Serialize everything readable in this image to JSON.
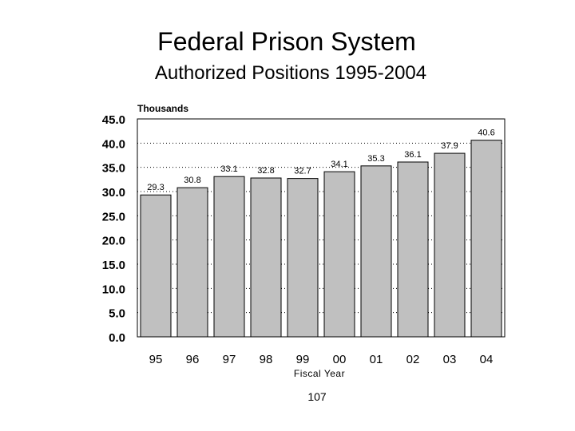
{
  "page_number": "107",
  "chart_data": {
    "type": "bar",
    "title": "Federal Prison System",
    "subtitle": "Authorized Positions 1995-2004",
    "ylabel": "Thousands",
    "xlabel": "Fiscal Year",
    "categories": [
      "95",
      "96",
      "97",
      "98",
      "99",
      "00",
      "01",
      "02",
      "03",
      "04"
    ],
    "values": [
      29.3,
      30.8,
      33.1,
      32.8,
      32.7,
      34.1,
      35.3,
      36.1,
      37.9,
      40.6
    ],
    "value_labels": [
      "29.3",
      "30.8",
      "33.1",
      "32.8",
      "32.7",
      "34.1",
      "35.3",
      "36.1",
      "37.9",
      "40.6"
    ],
    "ylim": [
      0,
      45
    ],
    "yticks": [
      "0.0",
      "5.0",
      "10.0",
      "15.0",
      "20.0",
      "25.0",
      "30.0",
      "35.0",
      "40.0",
      "45.0"
    ],
    "grid": true,
    "bar_color": "#c0c0c0"
  }
}
